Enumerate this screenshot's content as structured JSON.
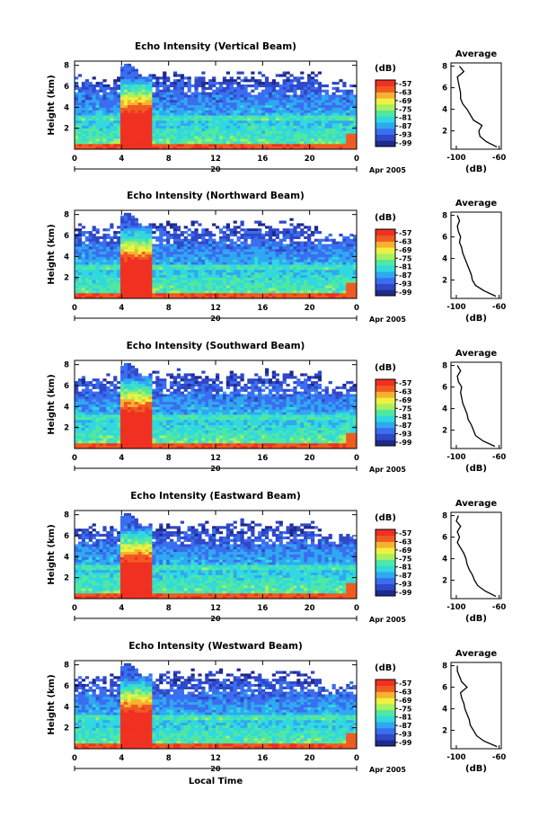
{
  "chart_data": [
    {
      "type": "heatmap",
      "title": "Echo Intensity (Vertical Beam)",
      "ylabel": "Height (km)",
      "xticks": [
        "0",
        "4",
        "8",
        "12",
        "16",
        "20",
        "0"
      ],
      "yticks": [
        "2",
        "4",
        "6",
        "8"
      ],
      "day_label": "20",
      "date_label": "Apr 2005",
      "colorbar": {
        "unit": "(dB)",
        "ticks": [
          "-57",
          "-63",
          "-69",
          "-75",
          "-81",
          "-87",
          "-93",
          "-99"
        ]
      },
      "profile": {
        "title": "Average",
        "xlabel": "(dB)",
        "xticks": [
          "-100",
          "-60"
        ],
        "yticks": [
          "2",
          "4",
          "6",
          "8"
        ],
        "xlim": [
          -105,
          -58
        ],
        "ylim": [
          0.3,
          8.3
        ],
        "height_km": [
          0.5,
          1.0,
          1.5,
          2.0,
          2.5,
          3.0,
          3.5,
          4.0,
          4.5,
          5.0,
          5.5,
          6.0,
          6.5,
          7.0,
          7.5,
          8.0
        ],
        "db": [
          -62,
          -72,
          -78,
          -79,
          -76,
          -84,
          -87,
          -90,
          -94,
          -96,
          -96,
          -97,
          -98,
          -99,
          -93,
          -97
        ]
      }
    },
    {
      "type": "heatmap",
      "title": "Echo Intensity (Northward Beam)",
      "ylabel": "Height (km)",
      "xticks": [
        "0",
        "4",
        "8",
        "12",
        "16",
        "20",
        "0"
      ],
      "yticks": [
        "2",
        "4",
        "6",
        "8"
      ],
      "day_label": "20",
      "date_label": "Apr 2005",
      "colorbar": {
        "unit": "(dB)",
        "ticks": [
          "-57",
          "-63",
          "-69",
          "-75",
          "-81",
          "-87",
          "-93",
          "-99"
        ]
      },
      "profile": {
        "title": "Average",
        "xlabel": "(dB)",
        "xticks": [
          "-100",
          "-60"
        ],
        "yticks": [
          "2",
          "4",
          "6",
          "8"
        ],
        "xlim": [
          -105,
          -58
        ],
        "ylim": [
          0.3,
          8.3
        ],
        "height_km": [
          0.5,
          1.0,
          1.5,
          2.0,
          2.5,
          3.0,
          3.5,
          4.0,
          4.5,
          5.0,
          5.5,
          6.0,
          6.5,
          7.0,
          7.5,
          8.0
        ],
        "db": [
          -63,
          -74,
          -82,
          -85,
          -86,
          -88,
          -90,
          -92,
          -94,
          -95,
          -97,
          -96,
          -98,
          -99,
          -97,
          -99
        ]
      }
    },
    {
      "type": "heatmap",
      "title": "Echo Intensity (Southward Beam)",
      "ylabel": "Height (km)",
      "xticks": [
        "0",
        "4",
        "8",
        "12",
        "16",
        "20",
        "0"
      ],
      "yticks": [
        "2",
        "4",
        "6",
        "8"
      ],
      "day_label": "20",
      "date_label": "Apr 2005",
      "colorbar": {
        "unit": "(dB)",
        "ticks": [
          "-57",
          "-63",
          "-69",
          "-75",
          "-81",
          "-87",
          "-93",
          "-99"
        ]
      },
      "profile": {
        "title": "Average",
        "xlabel": "(dB)",
        "xticks": [
          "-100",
          "-60"
        ],
        "yticks": [
          "2",
          "4",
          "6",
          "8"
        ],
        "xlim": [
          -105,
          -58
        ],
        "ylim": [
          0.3,
          8.3
        ],
        "height_km": [
          0.5,
          1.0,
          1.5,
          2.0,
          2.5,
          3.0,
          3.5,
          4.0,
          4.5,
          5.0,
          5.5,
          6.0,
          6.5,
          7.0,
          7.5,
          8.0
        ],
        "db": [
          -64,
          -75,
          -82,
          -84,
          -86,
          -89,
          -90,
          -92,
          -94,
          -95,
          -96,
          -95,
          -98,
          -99,
          -96,
          -99
        ]
      }
    },
    {
      "type": "heatmap",
      "title": "Echo Intensity (Eastward Beam)",
      "ylabel": "Height (km)",
      "xticks": [
        "0",
        "4",
        "8",
        "12",
        "16",
        "20",
        "0"
      ],
      "yticks": [
        "2",
        "4",
        "6",
        "8"
      ],
      "day_label": "20",
      "date_label": "Apr 2005",
      "colorbar": {
        "unit": "(dB)",
        "ticks": [
          "-57",
          "-63",
          "-69",
          "-75",
          "-81",
          "-87",
          "-93",
          "-99"
        ]
      },
      "profile": {
        "title": "Average",
        "xlabel": "(dB)",
        "xticks": [
          "-100",
          "-60"
        ],
        "yticks": [
          "2",
          "4",
          "6",
          "8"
        ],
        "xlim": [
          -105,
          -58
        ],
        "ylim": [
          0.3,
          8.3
        ],
        "height_km": [
          0.5,
          1.0,
          1.5,
          2.0,
          2.5,
          3.0,
          3.5,
          4.0,
          4.5,
          5.0,
          5.5,
          6.0,
          6.5,
          7.0,
          7.5,
          8.0
        ],
        "db": [
          -63,
          -73,
          -80,
          -83,
          -85,
          -88,
          -90,
          -91,
          -93,
          -96,
          -99,
          -97,
          -99,
          -96,
          -100,
          -98
        ]
      }
    },
    {
      "type": "heatmap",
      "title": "Echo Intensity (Westward Beam)",
      "ylabel": "Height (km)",
      "xticks": [
        "0",
        "4",
        "8",
        "12",
        "16",
        "20",
        "0"
      ],
      "yticks": [
        "2",
        "4",
        "6",
        "8"
      ],
      "day_label": "20",
      "date_label": "Apr 2005",
      "xlabel": "Local Time",
      "colorbar": {
        "unit": "(dB)",
        "ticks": [
          "-57",
          "-63",
          "-69",
          "-75",
          "-81",
          "-87",
          "-93",
          "-99"
        ]
      },
      "profile": {
        "title": "Average",
        "xlabel": "(dB)",
        "xticks": [
          "-100",
          "-60"
        ],
        "yticks": [
          "2",
          "4",
          "6",
          "8"
        ],
        "xlim": [
          -105,
          -58
        ],
        "ylim": [
          0.3,
          8.3
        ],
        "height_km": [
          0.5,
          1.0,
          1.5,
          2.0,
          2.5,
          3.0,
          3.5,
          4.0,
          4.5,
          5.0,
          5.5,
          6.0,
          6.5,
          7.0,
          7.5,
          8.0
        ],
        "db": [
          -62,
          -74,
          -81,
          -84,
          -87,
          -88,
          -90,
          -92,
          -93,
          -95,
          -96,
          -90,
          -95,
          -97,
          -99,
          -99
        ]
      }
    }
  ],
  "colors": {
    "colormap": [
      "#1e2a8c",
      "#2f48c8",
      "#3a6ef0",
      "#2fa8f0",
      "#30d8e0",
      "#50e8a0",
      "#a8f060",
      "#f0f040",
      "#f8b030",
      "#f05a20",
      "#f03020"
    ],
    "missing": "#ffffff",
    "axes": "#000000"
  }
}
